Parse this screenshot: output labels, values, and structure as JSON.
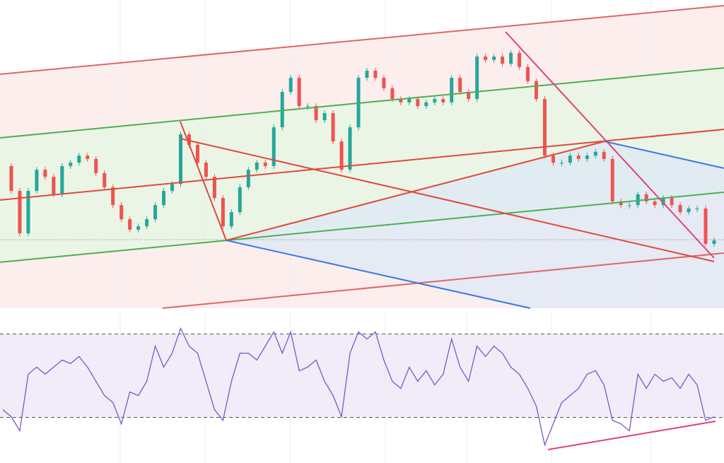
{
  "chart_data": [
    {
      "type": "candlestick",
      "ylim": [
        0,
        100
      ],
      "up_color": "#26a69a",
      "down_color": "#ef5350",
      "values": [
        46.0,
        37.9,
        24.1,
        37.9,
        44.8,
        42.5,
        36.8,
        46.0,
        47.1,
        49.4,
        48.3,
        43.7,
        39.1,
        33.3,
        28.7,
        25.3,
        26.4,
        28.7,
        33.3,
        37.9,
        40.2,
        56.3,
        52.9,
        47.1,
        42.5,
        35.6,
        26.4,
        31.0,
        39.1,
        44.8,
        47.1,
        46.0,
        58.6,
        70.1,
        74.7,
        65.5,
        65.5,
        60.9,
        63.2,
        54.0,
        44.8,
        58.6,
        74.7,
        77.0,
        74.7,
        71.3,
        67.8,
        66.7,
        67.8,
        65.5,
        66.7,
        67.8,
        66.7,
        74.7,
        70.1,
        67.8,
        81.6,
        80.5,
        81.6,
        79.3,
        82.8,
        78.2,
        73.6,
        67.8,
        49.4,
        47.1,
        47.1,
        49.4,
        48.3,
        49.4,
        50.6,
        48.3,
        34.5,
        33.3,
        33.3,
        36.8,
        34.5,
        33.3,
        35.6,
        33.3,
        31.0,
        32.2,
        32.2,
        20.7,
        21.8
      ]
    },
    {
      "type": "line",
      "ylim": [
        0,
        100
      ],
      "levels": [
        70,
        30
      ],
      "color": "#7e57c2",
      "values": [
        33.7,
        30.3,
        23.6,
        50.7,
        54.1,
        50.7,
        54.1,
        57.5,
        55.8,
        59.2,
        54.1,
        47.3,
        40.5,
        37.1,
        26.9,
        42.2,
        40.5,
        47.3,
        64.2,
        54.1,
        60.8,
        72.7,
        64.2,
        60.8,
        47.3,
        33.7,
        28.6,
        47.3,
        60.8,
        60.8,
        57.5,
        64.2,
        71.0,
        60.8,
        71.0,
        52.4,
        54.1,
        57.5,
        47.3,
        40.5,
        30.3,
        60.8,
        71.0,
        67.6,
        71.0,
        57.5,
        47.3,
        43.9,
        54.1,
        47.3,
        52.4,
        45.6,
        50.7,
        67.6,
        54.1,
        47.3,
        64.2,
        59.2,
        64.2,
        60.8,
        54.1,
        50.7,
        43.9,
        35.4,
        16.8,
        26.9,
        37.1,
        40.5,
        43.9,
        50.7,
        52.4,
        45.6,
        28.6,
        26.9,
        23.6,
        50.7,
        43.9,
        50.7,
        47.3,
        49.0,
        43.9,
        50.7,
        45.6,
        28.6,
        30.3
      ]
    }
  ]
}
